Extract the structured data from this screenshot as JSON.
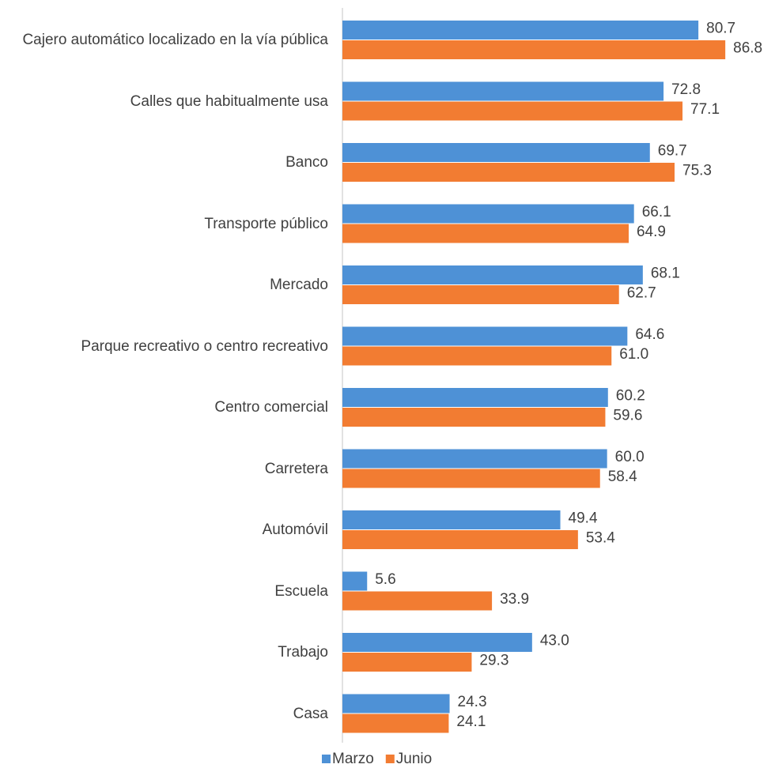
{
  "chart_data": {
    "type": "bar",
    "orientation": "horizontal",
    "categories": [
      "Cajero automático localizado en la vía pública",
      "Calles que habitualmente usa",
      "Banco",
      "Transporte público",
      "Mercado",
      "Parque recreativo o centro recreativo",
      "Centro comercial",
      "Carretera",
      "Automóvil",
      "Escuela",
      "Trabajo",
      "Casa"
    ],
    "series": [
      {
        "name": "Marzo",
        "color": "#4e91d6",
        "values": [
          80.7,
          72.8,
          69.7,
          66.1,
          68.1,
          64.6,
          60.2,
          60.0,
          49.4,
          5.6,
          43.0,
          24.3
        ],
        "value_labels": [
          "80.7",
          "72.8",
          "69.7",
          "66.1",
          "68.1",
          "64.6",
          "60.2",
          "60.0",
          "49.4",
          "5.6",
          "43.0",
          "24.3"
        ]
      },
      {
        "name": "Junio",
        "color": "#f27c32",
        "values": [
          86.8,
          77.1,
          75.3,
          64.9,
          62.7,
          61.0,
          59.6,
          58.4,
          53.4,
          33.9,
          29.3,
          24.1
        ],
        "value_labels": [
          "86.8",
          "77.1",
          "75.3",
          "64.9",
          "62.7",
          "61.0",
          "59.6",
          "58.4",
          "53.4",
          "33.9",
          "29.3",
          "24.1"
        ]
      }
    ],
    "xlim": [
      0,
      90
    ],
    "legend": "bottom"
  }
}
